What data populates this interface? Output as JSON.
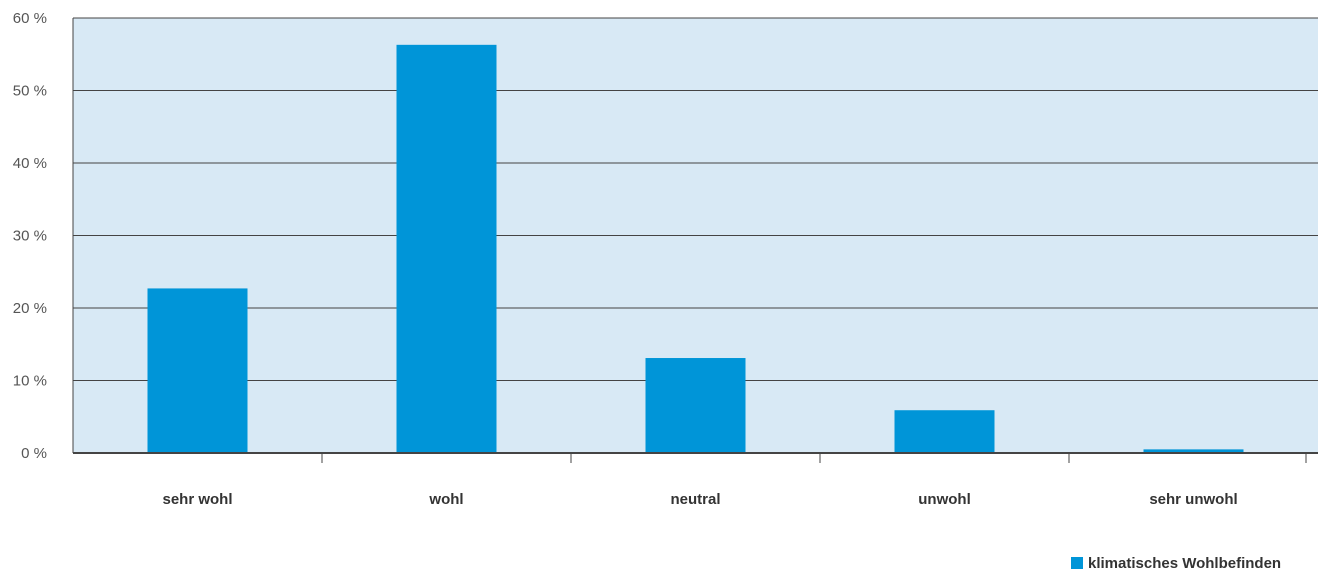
{
  "chart_data": {
    "type": "bar",
    "categories": [
      "sehr wohl",
      "wohl",
      "neutral",
      "unwohl",
      "sehr unwohl"
    ],
    "series": [
      {
        "name": "klimatisches Wohlbefinden",
        "values": [
          22.7,
          56.3,
          13.1,
          5.9,
          0.5
        ]
      }
    ],
    "ylim": [
      0,
      60
    ],
    "yticks": [
      0,
      10,
      20,
      30,
      40,
      50,
      60
    ],
    "ytick_labels": [
      "0 %",
      "10 %",
      "20 %",
      "30 %",
      "40 %",
      "50 %",
      "60 %"
    ],
    "xlabel": "",
    "ylabel": "",
    "grid": true,
    "legend_position": "bottom-right",
    "colors": {
      "bar": "#0095d8",
      "plot_background": "#d8e9f5",
      "grid": "#444444",
      "axis": "#444444"
    }
  }
}
